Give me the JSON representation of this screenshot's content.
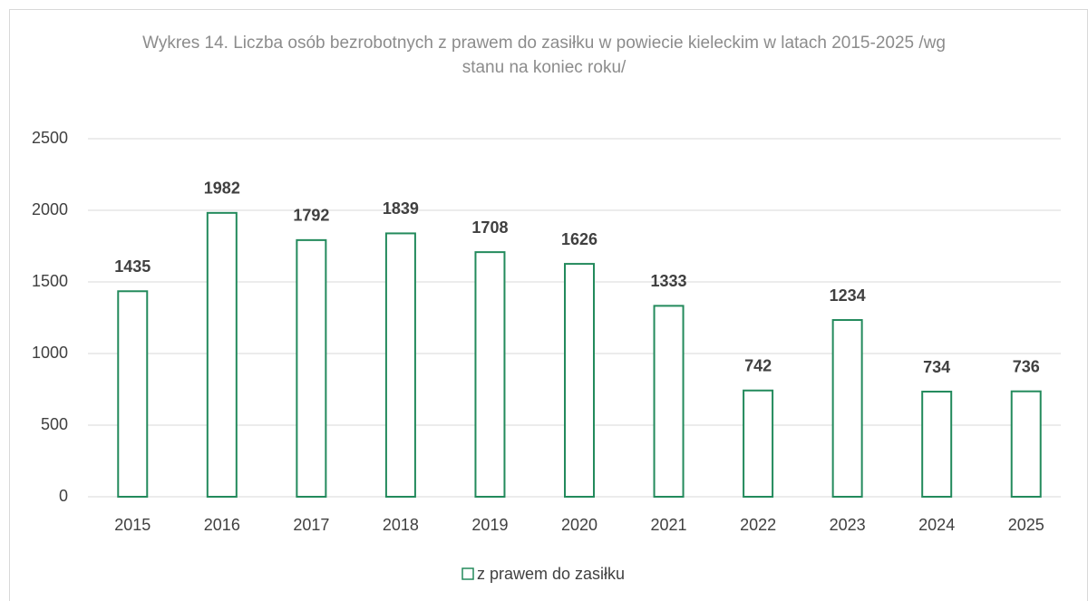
{
  "chart_data": {
    "type": "bar",
    "title": "Wykres 14. Liczba osób bezrobotnych z prawem do zasiłku w powiecie kieleckim w latach 2015-2025 /wg stanu na koniec roku/",
    "categories": [
      "2015",
      "2016",
      "2017",
      "2018",
      "2019",
      "2020",
      "2021",
      "2022",
      "2023",
      "2024",
      "2025"
    ],
    "series": [
      {
        "name": "z prawem do zasiłku",
        "color": "#238a5c",
        "values": [
          1435,
          1982,
          1792,
          1839,
          1708,
          1626,
          1333,
          742,
          1234,
          734,
          736
        ]
      }
    ],
    "ylim": [
      0,
      2500
    ],
    "yticks": [
      0,
      500,
      1000,
      1500,
      2000,
      2500
    ],
    "grid": true,
    "legend": "bottom",
    "data_labels": true
  }
}
